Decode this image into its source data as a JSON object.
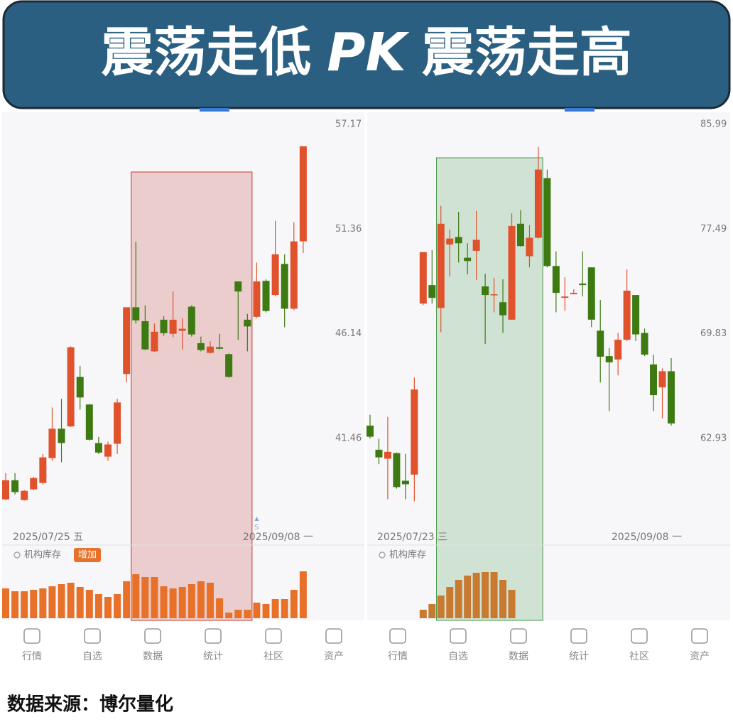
{
  "title": [
    "震荡走低",
    "PK",
    "震荡走高"
  ],
  "source": "数据来源：博尔量化",
  "nav": [
    "行情",
    "自选",
    "数据",
    "统计",
    "社区",
    "资产"
  ],
  "chart_data": [
    {
      "type": "candlestick",
      "log_scale": true,
      "up_color": "#e0522c",
      "down_color": "#3d7a12",
      "categories": [
        "2025/07/25 五",
        null,
        null,
        null,
        null,
        null,
        null,
        null,
        null,
        null,
        null,
        null,
        null,
        null,
        null,
        null,
        null,
        null,
        null,
        null,
        null,
        null,
        null,
        null,
        null,
        null,
        null,
        null,
        null,
        null,
        null,
        null,
        "2025/09/08 一"
      ],
      "open": [
        38.95,
        39.72,
        38.92,
        39.35,
        39.61,
        40.63,
        41.87,
        41.97,
        44.15,
        42.92,
        41.26,
        40.69,
        41.23,
        44.28,
        47.41,
        46.74,
        45.32,
        46.81,
        46.14,
        46.28,
        47.44,
        45.7,
        45.25,
        45.51,
        45.19,
        48.68,
        46.81,
        46.95,
        48.71,
        48.01,
        49.56,
        47.34,
        50.72
      ],
      "high": [
        40.01,
        40.01,
        39.32,
        39.86,
        40.8,
        42.79,
        43.17,
        45.55,
        44.65,
        42.95,
        41.52,
        41.32,
        43.17,
        47.41,
        50.69,
        47.51,
        46.63,
        46.98,
        48.18,
        46.88,
        47.51,
        46.01,
        45.79,
        46.14,
        45.22,
        48.68,
        47.09,
        49.63,
        48.78,
        51.8,
        50.05,
        51.72,
        55.9
      ],
      "low": [
        38.92,
        39.15,
        38.9,
        39.32,
        39.55,
        40.52,
        40.46,
        41.94,
        42.7,
        41.37,
        40.8,
        40.52,
        40.8,
        43.9,
        46.63,
        45.38,
        45.29,
        46.05,
        45.98,
        45.41,
        46.01,
        45.32,
        45.22,
        45.41,
        44.12,
        45.86,
        45.32,
        46.88,
        47.16,
        47.94,
        46.45,
        47.27,
        50.12
      ],
      "close": [
        39.72,
        39.24,
        39.29,
        39.81,
        40.66,
        41.87,
        41.26,
        45.51,
        43.23,
        41.4,
        40.86,
        41.2,
        43.01,
        47.41,
        46.78,
        45.41,
        46.24,
        46.17,
        46.81,
        46.38,
        46.11,
        45.38,
        45.54,
        45.44,
        44.15,
        48.18,
        46.49,
        48.68,
        47.23,
        50.05,
        47.34,
        50.72,
        55.9
      ],
      "ylim": [
        37.77,
        57.67
      ],
      "yticks": [
        57.17,
        51.36,
        46.14,
        41.46
      ],
      "marker": {
        "label": "S",
        "index": 27
      },
      "highlight": {
        "from": 14,
        "to": 26,
        "color": "#c0392b"
      },
      "volume": {
        "label": "机构库存",
        "badge": "增加",
        "color": "#e8712a",
        "values": [
          42,
          38,
          38,
          40,
          42,
          45,
          48,
          50,
          44,
          40,
          34,
          30,
          34,
          52,
          62,
          58,
          58,
          45,
          42,
          44,
          48,
          52,
          50,
          28,
          8,
          12,
          12,
          22,
          20,
          27,
          27,
          40,
          66
        ]
      }
    },
    {
      "type": "candlestick",
      "log_scale": true,
      "up_color": "#e0522c",
      "down_color": "#3d7a12",
      "categories": [
        "2025/07/23 三",
        null,
        null,
        null,
        null,
        null,
        null,
        null,
        null,
        null,
        null,
        null,
        null,
        null,
        null,
        null,
        null,
        null,
        null,
        null,
        null,
        null,
        null,
        null,
        null,
        null,
        null,
        null,
        null,
        null,
        null,
        null,
        null,
        null,
        "2025/09/08 一"
      ],
      "open": [
        63.73,
        62.22,
        61.67,
        62.01,
        60.33,
        60.7,
        71.95,
        73.29,
        71.64,
        76.3,
        76.87,
        75.31,
        75.83,
        73.19,
        72.57,
        72.05,
        70.81,
        77.9,
        75.42,
        76.82,
        81.51,
        74.69,
        72.36,
        72.62,
        73.4,
        74.59,
        70.04,
        68.29,
        68.06,
        69.41,
        72.57,
        69.88,
        67.73,
        66.2,
        67.27
      ],
      "high": [
        64.42,
        62.89,
        64.28,
        62.05,
        61.96,
        66.85,
        75.73,
        75.88,
        79.3,
        77.44,
        78.83,
        76.4,
        78.89,
        74.12,
        73.81,
        73.71,
        78.71,
        78.95,
        77.79,
        84.07,
        82.21,
        75.78,
        73.86,
        72.98,
        75.78,
        74.59,
        72.21,
        68.85,
        69.88,
        74.43,
        72.57,
        70.19,
        68.39,
        67.46,
        68.15
      ],
      "low": [
        62.93,
        61.33,
        59.23,
        59.86,
        59.23,
        59.11,
        71.84,
        71.95,
        69.93,
        73.92,
        74.95,
        74.07,
        73.66,
        69.13,
        71.33,
        69.88,
        70.81,
        76.14,
        74.59,
        76.76,
        74.59,
        71.33,
        71.43,
        72.62,
        72.46,
        70.3,
        66.52,
        64.66,
        66.99,
        69.32,
        69.32,
        68.29,
        64.66,
        64.19,
        63.73
      ],
      "close": [
        63.03,
        61.75,
        62.09,
        59.95,
        60.12,
        66.06,
        75.73,
        72.36,
        77.9,
        76.76,
        76.4,
        75.06,
        76.66,
        72.57,
        72.62,
        71.12,
        77.73,
        76.19,
        76.82,
        82.21,
        74.69,
        72.72,
        72.46,
        72.72,
        73.29,
        70.81,
        68.25,
        67.87,
        69.41,
        72.88,
        69.78,
        68.39,
        65.69,
        67.27,
        63.87
      ],
      "ylim": [
        57.48,
        86.72
      ],
      "yticks": [
        85.99,
        77.49,
        69.83,
        62.93
      ],
      "highlight": {
        "from": 8,
        "to": 19,
        "color": "#4a9a4a"
      },
      "volume": {
        "label": "机构库存",
        "color": "#c87a30",
        "values": [
          null,
          null,
          null,
          null,
          null,
          null,
          12,
          20,
          32,
          44,
          54,
          60,
          64,
          65,
          65,
          54,
          40,
          null,
          null,
          null,
          null,
          null,
          null,
          null,
          null,
          null,
          null,
          null,
          null,
          null,
          null,
          null,
          null,
          null,
          null
        ]
      }
    }
  ]
}
